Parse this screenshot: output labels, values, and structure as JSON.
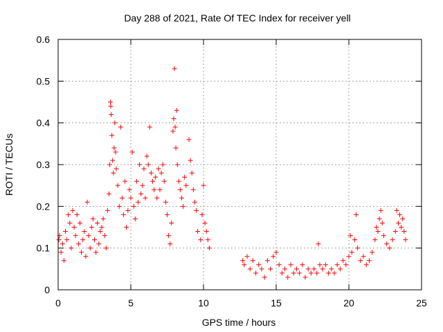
{
  "chart_data": {
    "type": "scatter",
    "title": "Day 288 of 2021, Rate Of TEC Index for receiver yell",
    "xlabel": "GPS time / hours",
    "ylabel": "ROTI / TECUs",
    "xlim": [
      0,
      25
    ],
    "ylim": [
      0,
      0.6
    ],
    "xticks": [
      0,
      5,
      10,
      15,
      20,
      25
    ],
    "xtick_labels": [
      "0",
      "5",
      "10",
      "15",
      "20",
      "25"
    ],
    "yticks": [
      0,
      0.1,
      0.2,
      0.3,
      0.4,
      0.5,
      0.6
    ],
    "ytick_labels": [
      "0",
      "0.1",
      "0.2",
      "0.3",
      "0.4",
      "0.5",
      "0.6"
    ],
    "grid": true,
    "marker": "+",
    "marker_color": "#ff0000",
    "series": [
      {
        "name": "ROTI",
        "approximate": true,
        "points": [
          [
            0.05,
            0.12
          ],
          [
            0.1,
            0.13
          ],
          [
            0.2,
            0.09
          ],
          [
            0.3,
            0.11
          ],
          [
            0.4,
            0.07
          ],
          [
            0.5,
            0.14
          ],
          [
            0.6,
            0.12
          ],
          [
            0.7,
            0.18
          ],
          [
            0.8,
            0.16
          ],
          [
            0.9,
            0.1
          ],
          [
            1.0,
            0.19
          ],
          [
            1.1,
            0.15
          ],
          [
            1.2,
            0.13
          ],
          [
            1.3,
            0.18
          ],
          [
            1.4,
            0.11
          ],
          [
            1.5,
            0.16
          ],
          [
            1.6,
            0.09
          ],
          [
            1.7,
            0.12
          ],
          [
            1.8,
            0.14
          ],
          [
            1.9,
            0.08
          ],
          [
            2.0,
            0.21
          ],
          [
            2.1,
            0.13
          ],
          [
            2.2,
            0.1
          ],
          [
            2.3,
            0.15
          ],
          [
            2.4,
            0.17
          ],
          [
            2.5,
            0.12
          ],
          [
            2.6,
            0.09
          ],
          [
            2.7,
            0.16
          ],
          [
            2.8,
            0.11
          ],
          [
            2.9,
            0.14
          ],
          [
            3.0,
            0.15
          ],
          [
            3.1,
            0.17
          ],
          [
            3.2,
            0.13
          ],
          [
            3.3,
            0.1
          ],
          [
            3.4,
            0.19
          ],
          [
            3.5,
            0.23
          ],
          [
            3.55,
            0.3
          ],
          [
            3.6,
            0.45
          ],
          [
            3.62,
            0.44
          ],
          [
            3.65,
            0.42
          ],
          [
            3.7,
            0.37
          ],
          [
            3.75,
            0.31
          ],
          [
            3.8,
            0.28
          ],
          [
            3.85,
            0.34
          ],
          [
            3.9,
            0.4
          ],
          [
            3.95,
            0.33
          ],
          [
            4.0,
            0.29
          ],
          [
            4.1,
            0.25
          ],
          [
            4.2,
            0.2
          ],
          [
            4.3,
            0.39
          ],
          [
            4.4,
            0.22
          ],
          [
            4.5,
            0.18
          ],
          [
            4.6,
            0.26
          ],
          [
            4.7,
            0.15
          ],
          [
            4.8,
            0.19
          ],
          [
            4.9,
            0.24
          ],
          [
            5.0,
            0.22
          ],
          [
            5.1,
            0.33
          ],
          [
            5.2,
            0.2
          ],
          [
            5.3,
            0.17
          ],
          [
            5.4,
            0.26
          ],
          [
            5.5,
            0.21
          ],
          [
            5.6,
            0.3
          ],
          [
            5.7,
            0.23
          ],
          [
            5.8,
            0.25
          ],
          [
            5.9,
            0.29
          ],
          [
            6.0,
            0.22
          ],
          [
            6.1,
            0.32
          ],
          [
            6.2,
            0.3
          ],
          [
            6.3,
            0.39
          ],
          [
            6.4,
            0.28
          ],
          [
            6.5,
            0.26
          ],
          [
            6.6,
            0.24
          ],
          [
            6.7,
            0.27
          ],
          [
            6.8,
            0.22
          ],
          [
            6.9,
            0.29
          ],
          [
            7.0,
            0.24
          ],
          [
            7.1,
            0.28
          ],
          [
            7.2,
            0.3
          ],
          [
            7.3,
            0.26
          ],
          [
            7.4,
            0.21
          ],
          [
            7.5,
            0.18
          ],
          [
            7.6,
            0.13
          ],
          [
            7.7,
            0.11
          ],
          [
            7.8,
            0.16
          ],
          [
            7.9,
            0.38
          ],
          [
            7.95,
            0.41
          ],
          [
            8.0,
            0.53
          ],
          [
            8.05,
            0.39
          ],
          [
            8.1,
            0.34
          ],
          [
            8.15,
            0.43
          ],
          [
            8.2,
            0.3
          ],
          [
            8.3,
            0.26
          ],
          [
            8.4,
            0.24
          ],
          [
            8.5,
            0.22
          ],
          [
            8.6,
            0.2
          ],
          [
            8.7,
            0.27
          ],
          [
            8.8,
            0.25
          ],
          [
            9.0,
            0.36
          ],
          [
            9.1,
            0.31
          ],
          [
            9.2,
            0.28
          ],
          [
            9.3,
            0.24
          ],
          [
            9.4,
            0.21
          ],
          [
            9.5,
            0.19
          ],
          [
            9.6,
            0.14
          ],
          [
            9.8,
            0.12
          ],
          [
            9.9,
            0.18
          ],
          [
            10.0,
            0.25
          ],
          [
            10.1,
            0.16
          ],
          [
            10.2,
            0.14
          ],
          [
            10.3,
            0.12
          ],
          [
            10.4,
            0.1
          ],
          [
            12.7,
            0.07
          ],
          [
            12.8,
            0.06
          ],
          [
            13.0,
            0.08
          ],
          [
            13.2,
            0.05
          ],
          [
            13.4,
            0.07
          ],
          [
            13.6,
            0.04
          ],
          [
            13.8,
            0.06
          ],
          [
            14.0,
            0.05
          ],
          [
            14.2,
            0.03
          ],
          [
            14.4,
            0.07
          ],
          [
            14.6,
            0.05
          ],
          [
            14.8,
            0.08
          ],
          [
            15.0,
            0.09
          ],
          [
            15.2,
            0.06
          ],
          [
            15.4,
            0.04
          ],
          [
            15.6,
            0.05
          ],
          [
            15.8,
            0.03
          ],
          [
            16.0,
            0.06
          ],
          [
            16.2,
            0.04
          ],
          [
            16.4,
            0.05
          ],
          [
            16.6,
            0.04
          ],
          [
            16.8,
            0.06
          ],
          [
            17.0,
            0.03
          ],
          [
            17.2,
            0.05
          ],
          [
            17.4,
            0.04
          ],
          [
            17.6,
            0.05
          ],
          [
            17.8,
            0.04
          ],
          [
            17.9,
            0.11
          ],
          [
            18.0,
            0.06
          ],
          [
            18.2,
            0.05
          ],
          [
            18.4,
            0.06
          ],
          [
            18.6,
            0.04
          ],
          [
            18.8,
            0.05
          ],
          [
            19.0,
            0.04
          ],
          [
            19.2,
            0.06
          ],
          [
            19.4,
            0.05
          ],
          [
            19.6,
            0.07
          ],
          [
            19.8,
            0.06
          ],
          [
            20.0,
            0.08
          ],
          [
            20.1,
            0.13
          ],
          [
            20.2,
            0.09
          ],
          [
            20.4,
            0.12
          ],
          [
            20.5,
            0.18
          ],
          [
            20.6,
            0.1
          ],
          [
            20.8,
            0.07
          ],
          [
            21.0,
            0.08
          ],
          [
            21.2,
            0.06
          ],
          [
            21.4,
            0.07
          ],
          [
            21.6,
            0.09
          ],
          [
            21.8,
            0.12
          ],
          [
            21.9,
            0.15
          ],
          [
            22.0,
            0.14
          ],
          [
            22.1,
            0.17
          ],
          [
            22.2,
            0.19
          ],
          [
            22.3,
            0.16
          ],
          [
            22.4,
            0.13
          ],
          [
            22.6,
            0.11
          ],
          [
            22.8,
            0.1
          ],
          [
            23.0,
            0.12
          ],
          [
            23.2,
            0.14
          ],
          [
            23.3,
            0.19
          ],
          [
            23.4,
            0.16
          ],
          [
            23.5,
            0.18
          ],
          [
            23.6,
            0.15
          ],
          [
            23.7,
            0.17
          ],
          [
            23.8,
            0.14
          ],
          [
            23.9,
            0.12
          ]
        ]
      }
    ]
  }
}
